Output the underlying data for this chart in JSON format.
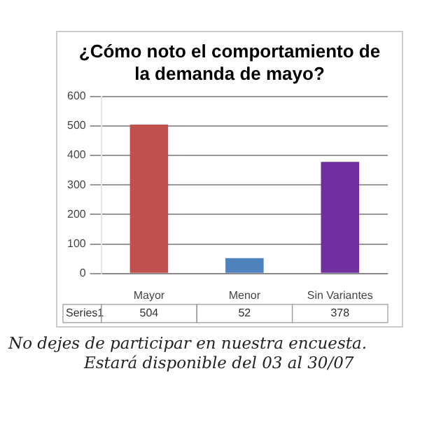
{
  "chart_data": {
    "type": "bar",
    "title": "¿Cómo noto el comportamiento de la demanda de mayo?",
    "categories": [
      "Mayor",
      "Menor",
      "Sin Variantes"
    ],
    "series": [
      {
        "name": "Series1",
        "colors": [
          "#c0504d",
          "#4f81bd",
          "#7030a0"
        ],
        "values": [
          504,
          52,
          378
        ]
      }
    ],
    "ylim": [
      0,
      600
    ],
    "yticks": [
      0,
      100,
      200,
      300,
      400,
      500,
      600
    ],
    "grid": "y",
    "legend": false,
    "data_labels": true,
    "annotations": [
      "No dejes de participar en nuestra encuesta.",
      "Estará disponible del 03 al 30/07"
    ]
  }
}
